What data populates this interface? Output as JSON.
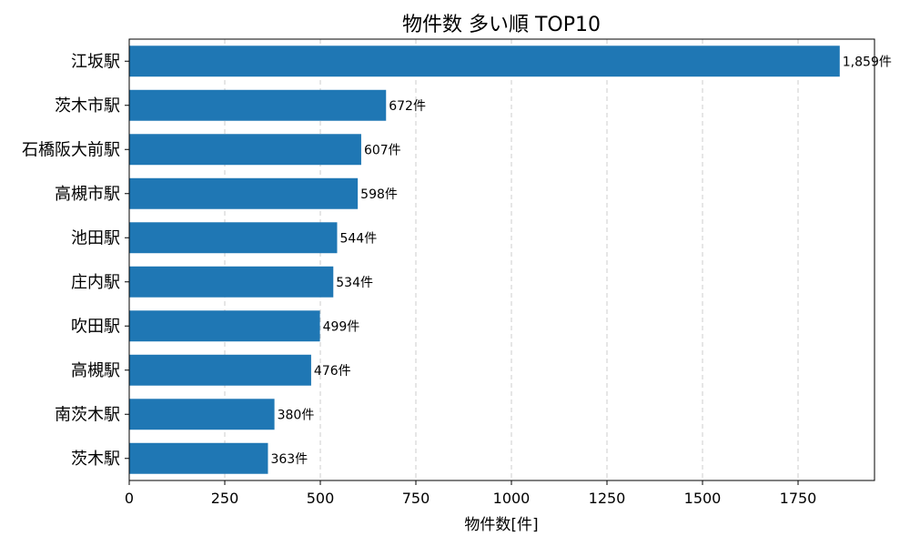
{
  "chart_data": {
    "type": "bar",
    "orientation": "horizontal",
    "title": "物件数 多い順 TOP10",
    "xlabel": "物件数[件]",
    "ylabel": "",
    "xlim": [
      0,
      1950
    ],
    "xticks": [
      0,
      250,
      500,
      750,
      1000,
      1250,
      1500,
      1750
    ],
    "grid": "x-dashed",
    "bar_color": "#1f77b4",
    "categories": [
      "江坂駅",
      "茨木市駅",
      "石橋阪大前駅",
      "高槻市駅",
      "池田駅",
      "庄内駅",
      "吹田駅",
      "高槻駅",
      "南茨木駅",
      "茨木駅"
    ],
    "values": [
      1859,
      672,
      607,
      598,
      544,
      534,
      499,
      476,
      380,
      363
    ],
    "value_labels": [
      "1,859件",
      "672件",
      "607件",
      "598件",
      "544件",
      "534件",
      "499件",
      "476件",
      "380件",
      "363件"
    ]
  }
}
